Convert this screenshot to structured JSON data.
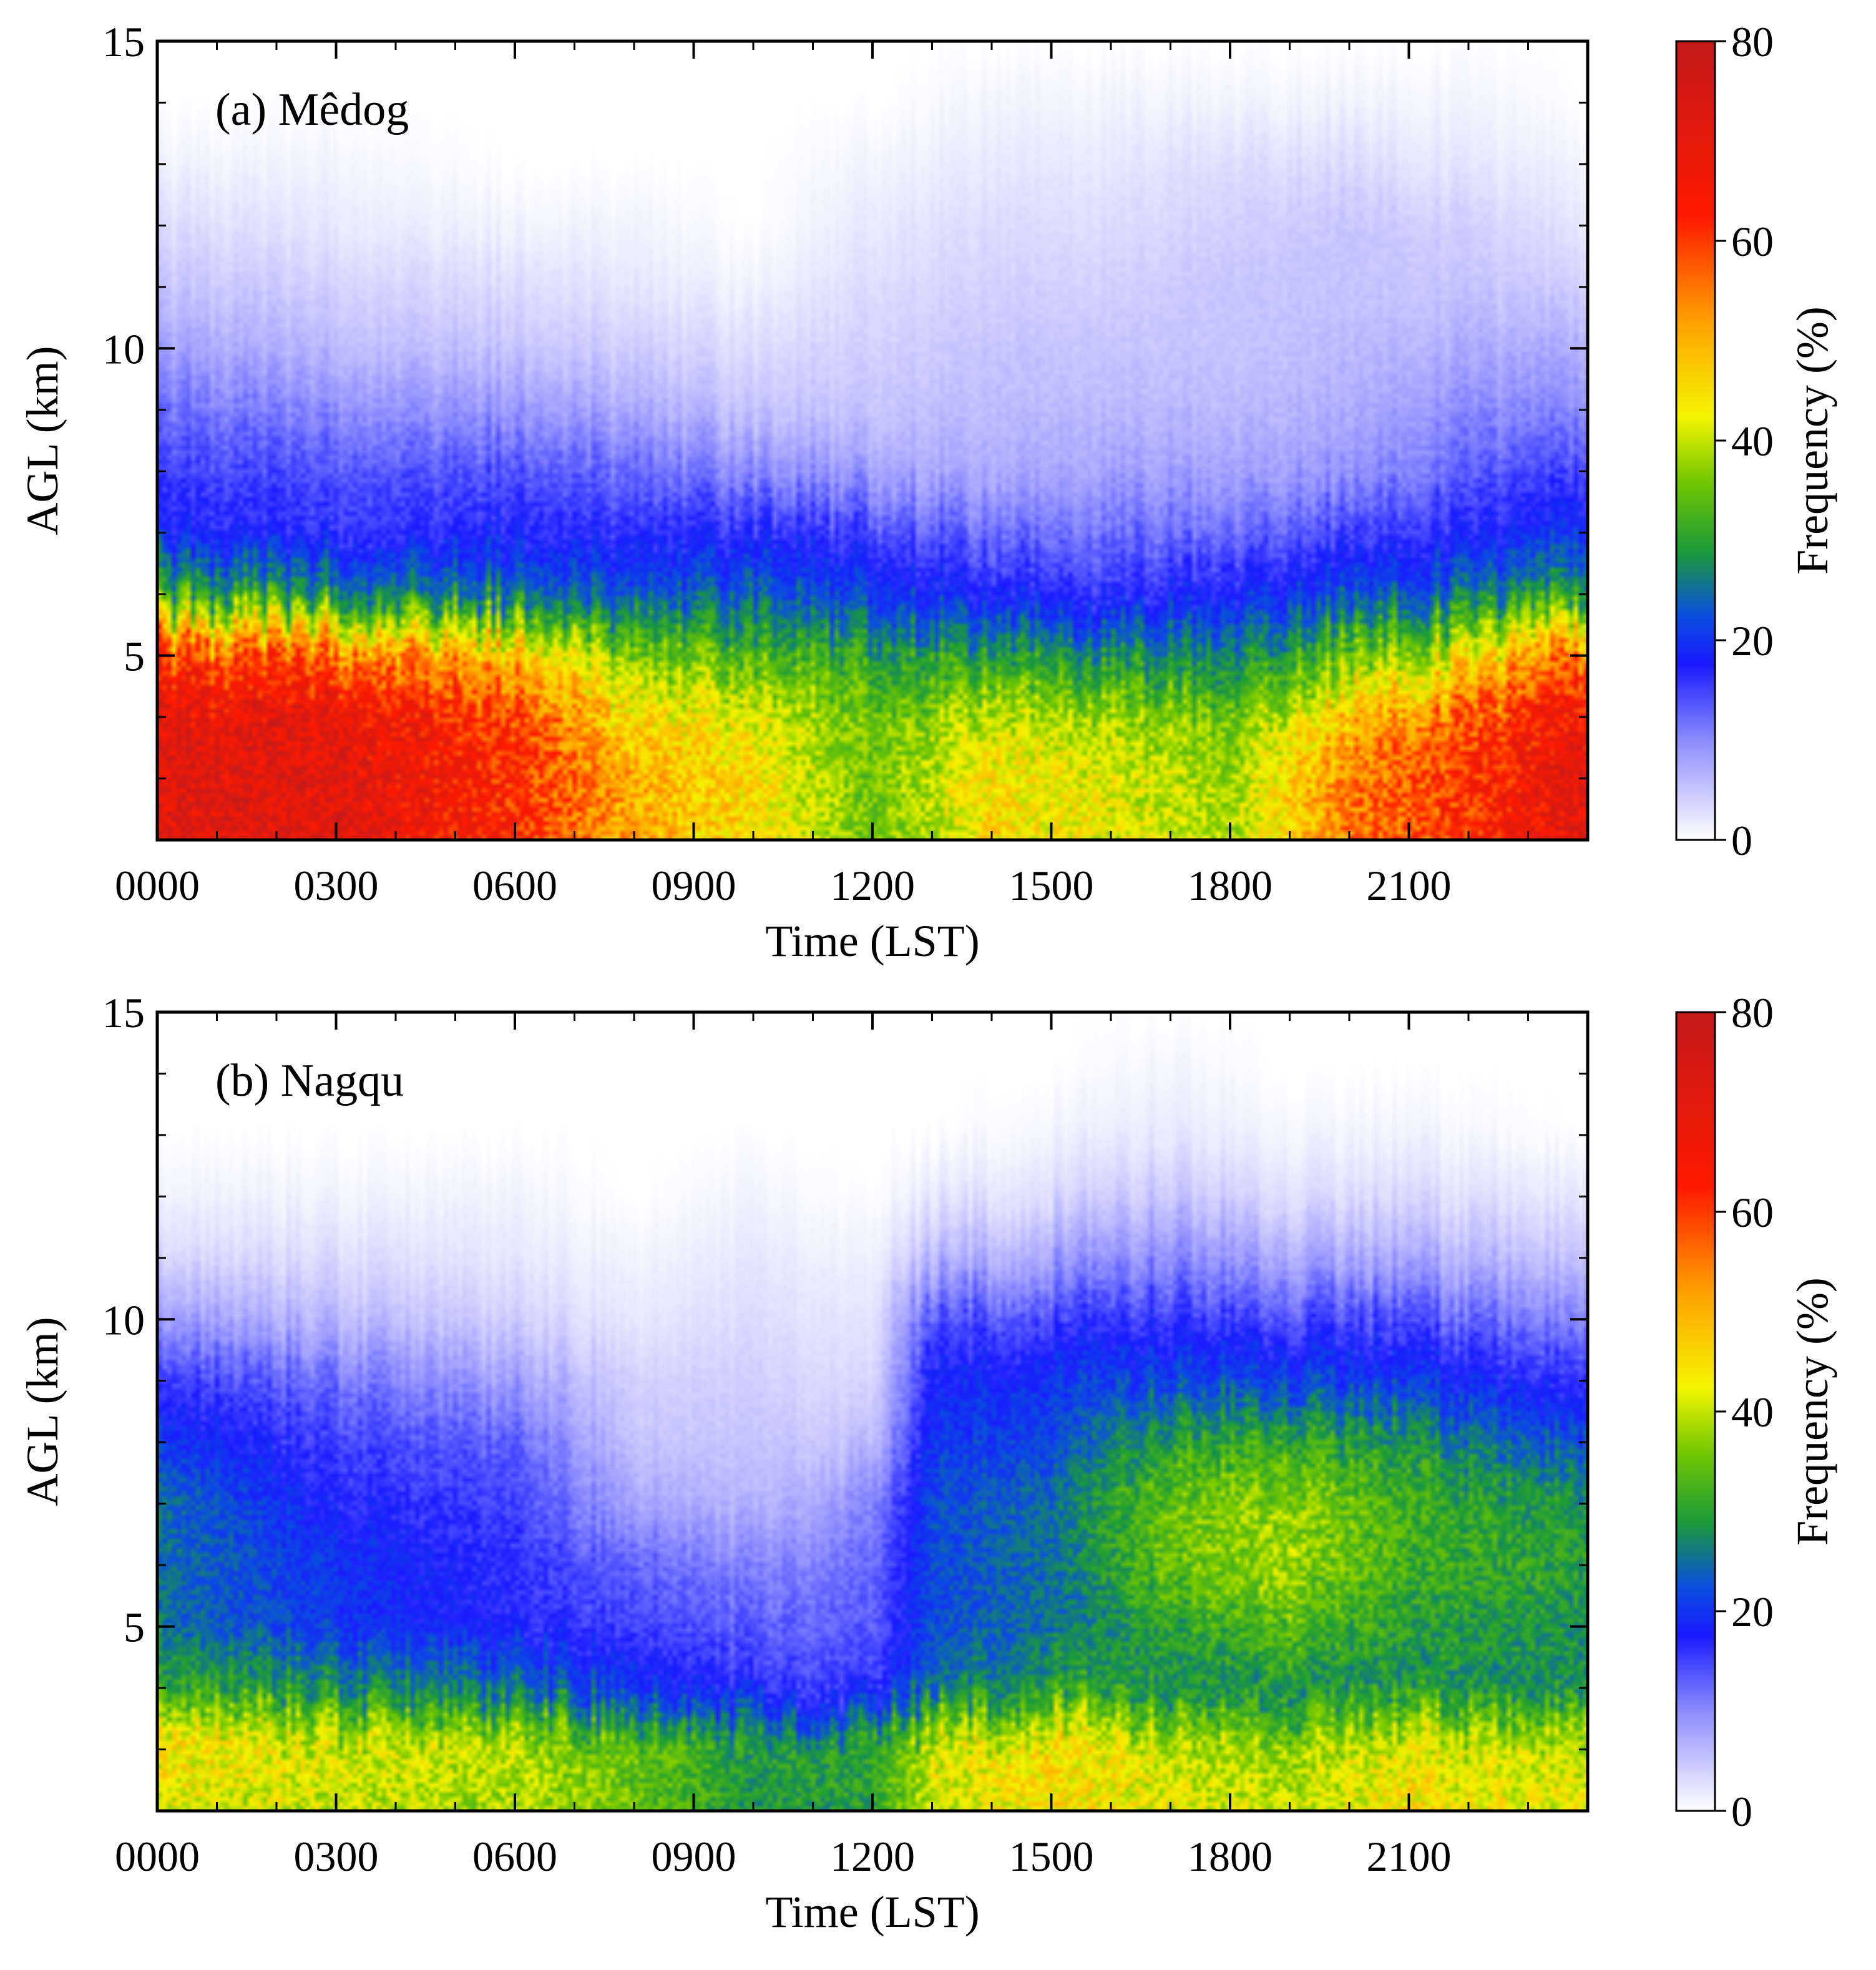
{
  "chart_data": [
    {
      "type": "heatmap",
      "panel_label": "(a) Mêdog",
      "xlabel": "Time (LST)",
      "ylabel": "AGL (km)",
      "x_tick_labels": [
        "0000",
        "0300",
        "0600",
        "0900",
        "1200",
        "1500",
        "1800",
        "2100"
      ],
      "x_tick_hours": [
        0,
        3,
        6,
        9,
        12,
        15,
        18,
        21
      ],
      "xlim_hours": [
        0,
        24
      ],
      "y_tick_labels": [
        "5",
        "10",
        "15"
      ],
      "y_tick_values": [
        5,
        10,
        15
      ],
      "ylim": [
        2,
        15
      ],
      "colorbar": {
        "label": "Frequency (%)",
        "ticks": [
          "0",
          "20",
          "40",
          "60",
          "80"
        ],
        "range": [
          0,
          80
        ]
      },
      "profile_hours": [
        0,
        3,
        6,
        8,
        10,
        12,
        14,
        16,
        18,
        20,
        22,
        24
      ],
      "height_km": [
        2,
        3,
        4,
        5,
        6,
        7,
        8,
        9,
        10,
        11,
        12,
        13,
        14,
        15
      ],
      "frequency": [
        [
          72,
          72,
          70,
          60,
          30,
          18,
          15,
          12,
          8,
          5,
          3,
          1,
          0,
          0
        ],
        [
          72,
          72,
          70,
          58,
          28,
          16,
          14,
          10,
          6,
          4,
          2,
          1,
          0,
          0
        ],
        [
          62,
          62,
          60,
          48,
          25,
          17,
          14,
          9,
          5,
          3,
          1,
          0,
          0,
          0
        ],
        [
          50,
          50,
          45,
          35,
          22,
          16,
          12,
          7,
          4,
          2,
          1,
          0,
          0,
          0
        ],
        [
          45,
          45,
          42,
          33,
          24,
          17,
          10,
          5,
          3,
          1,
          0,
          0,
          0,
          0
        ],
        [
          35,
          35,
          35,
          30,
          20,
          15,
          8,
          5,
          4,
          3,
          2,
          1,
          0,
          0
        ],
        [
          45,
          45,
          40,
          30,
          18,
          12,
          7,
          6,
          5,
          4,
          3,
          2,
          1,
          0
        ],
        [
          42,
          42,
          38,
          28,
          16,
          12,
          8,
          6,
          5,
          4,
          3,
          2,
          1,
          0
        ],
        [
          38,
          38,
          35,
          26,
          18,
          12,
          8,
          6,
          5,
          5,
          4,
          3,
          1,
          0
        ],
        [
          55,
          55,
          48,
          35,
          22,
          15,
          9,
          7,
          6,
          5,
          5,
          3,
          1,
          0
        ],
        [
          62,
          62,
          58,
          42,
          25,
          17,
          13,
          10,
          7,
          5,
          4,
          2,
          1,
          0
        ],
        [
          72,
          72,
          68,
          58,
          30,
          20,
          15,
          10,
          7,
          4,
          2,
          1,
          0,
          0
        ]
      ]
    },
    {
      "type": "heatmap",
      "panel_label": "(b) Nagqu",
      "xlabel": "Time (LST)",
      "ylabel": "AGL (km)",
      "x_tick_labels": [
        "0000",
        "0300",
        "0600",
        "0900",
        "1200",
        "1500",
        "1800",
        "2100"
      ],
      "x_tick_hours": [
        0,
        3,
        6,
        9,
        12,
        15,
        18,
        21
      ],
      "xlim_hours": [
        0,
        24
      ],
      "y_tick_labels": [
        "5",
        "10",
        "15"
      ],
      "y_tick_values": [
        5,
        10,
        15
      ],
      "ylim": [
        2,
        15
      ],
      "colorbar": {
        "label": "Frequency (%)",
        "ticks": [
          "0",
          "20",
          "40",
          "60",
          "80"
        ],
        "range": [
          0,
          80
        ]
      },
      "profile_hours": [
        0,
        3,
        6,
        8,
        10,
        12,
        13,
        15,
        17,
        19,
        21,
        24
      ],
      "height_km": [
        2,
        3,
        4,
        5,
        6,
        7,
        8,
        9,
        10,
        11,
        12,
        13,
        14,
        15
      ],
      "frequency": [
        [
          42,
          45,
          30,
          25,
          25,
          25,
          20,
          15,
          8,
          3,
          1,
          0,
          0,
          0
        ],
        [
          40,
          42,
          28,
          20,
          20,
          17,
          15,
          12,
          6,
          3,
          1,
          0,
          0,
          0
        ],
        [
          38,
          40,
          25,
          17,
          16,
          15,
          13,
          8,
          4,
          2,
          1,
          0,
          0,
          0
        ],
        [
          35,
          35,
          20,
          15,
          13,
          8,
          5,
          4,
          2,
          1,
          0,
          0,
          0,
          0
        ],
        [
          28,
          30,
          16,
          13,
          10,
          6,
          5,
          4,
          3,
          2,
          1,
          0,
          0,
          0
        ],
        [
          30,
          30,
          15,
          13,
          12,
          10,
          5,
          3,
          2,
          1,
          0,
          0,
          0,
          0
        ],
        [
          40,
          42,
          25,
          22,
          22,
          22,
          20,
          18,
          14,
          6,
          2,
          0,
          0,
          0
        ],
        [
          45,
          45,
          30,
          25,
          25,
          25,
          22,
          20,
          15,
          8,
          3,
          1,
          0,
          0
        ],
        [
          42,
          40,
          28,
          30,
          35,
          35,
          30,
          22,
          16,
          10,
          5,
          2,
          1,
          0
        ],
        [
          40,
          38,
          28,
          33,
          38,
          38,
          32,
          22,
          15,
          8,
          3,
          1,
          0,
          0
        ],
        [
          45,
          42,
          28,
          30,
          32,
          32,
          28,
          20,
          14,
          7,
          3,
          1,
          0,
          0
        ],
        [
          42,
          40,
          28,
          28,
          30,
          28,
          22,
          16,
          10,
          5,
          2,
          0,
          0,
          0
        ]
      ]
    }
  ]
}
